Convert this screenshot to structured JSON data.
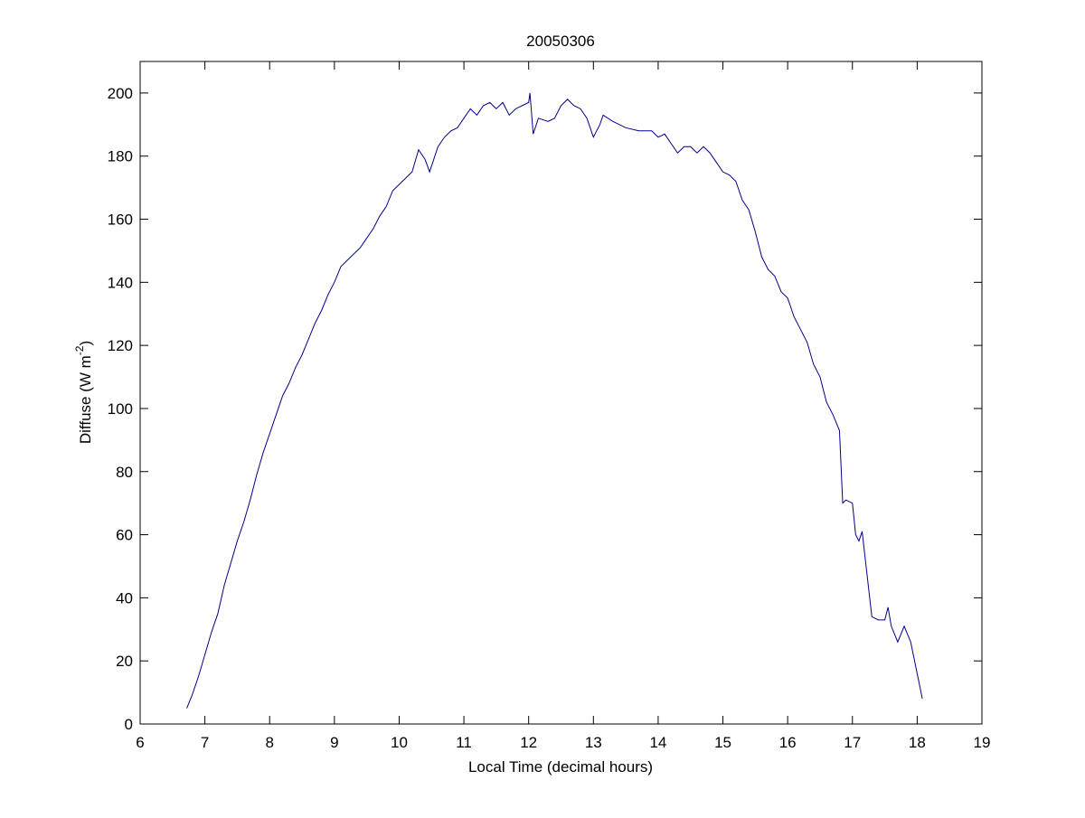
{
  "chart_data": {
    "type": "line",
    "title": "20050306",
    "xlabel": "Local Time (decimal hours)",
    "ylabel": [
      "Diffuse (W m",
      "-2",
      ")"
    ],
    "xlim": [
      6,
      19
    ],
    "ylim": [
      0,
      210
    ],
    "xticks": [
      6,
      7,
      8,
      9,
      10,
      11,
      12,
      13,
      14,
      15,
      16,
      17,
      18,
      19
    ],
    "yticks": [
      0,
      20,
      40,
      60,
      80,
      100,
      120,
      140,
      160,
      180,
      200
    ],
    "grid": false,
    "series": [
      {
        "color": "#00008b",
        "x": [
          6.72,
          6.8,
          6.9,
          7.0,
          7.1,
          7.2,
          7.3,
          7.4,
          7.5,
          7.6,
          7.7,
          7.8,
          7.9,
          8.0,
          8.1,
          8.2,
          8.3,
          8.4,
          8.5,
          8.6,
          8.7,
          8.8,
          8.9,
          9.0,
          9.1,
          9.2,
          9.3,
          9.4,
          9.5,
          9.6,
          9.7,
          9.8,
          9.9,
          10.0,
          10.1,
          10.2,
          10.3,
          10.4,
          10.47,
          10.6,
          10.7,
          10.8,
          10.9,
          11.0,
          11.1,
          11.2,
          11.3,
          11.4,
          11.5,
          11.6,
          11.7,
          11.8,
          11.9,
          12.0,
          12.02,
          12.07,
          12.15,
          12.3,
          12.4,
          12.5,
          12.6,
          12.7,
          12.8,
          12.9,
          13.0,
          13.1,
          13.15,
          13.3,
          13.5,
          13.7,
          13.9,
          14.0,
          14.1,
          14.2,
          14.3,
          14.4,
          14.5,
          14.6,
          14.7,
          14.8,
          14.9,
          15.0,
          15.1,
          15.2,
          15.3,
          15.4,
          15.5,
          15.6,
          15.7,
          15.8,
          15.9,
          16.0,
          16.1,
          16.2,
          16.3,
          16.4,
          16.5,
          16.6,
          16.7,
          16.8,
          16.85,
          16.9,
          17.0,
          17.05,
          17.1,
          17.15,
          17.2,
          17.3,
          17.4,
          17.5,
          17.55,
          17.6,
          17.7,
          17.8,
          17.9,
          18.0,
          18.08
        ],
        "values": [
          5,
          9,
          15,
          22,
          29,
          35,
          44,
          51,
          58,
          64,
          71,
          79,
          86,
          92,
          98,
          104,
          108,
          113,
          117,
          122,
          127,
          131,
          136,
          140,
          145,
          147,
          149,
          151,
          154,
          157,
          161,
          164,
          169,
          171,
          173,
          175,
          182,
          179,
          175,
          183,
          186,
          188,
          189,
          192,
          195,
          193,
          196,
          197,
          195,
          197,
          193,
          195,
          196,
          197,
          200,
          187,
          192,
          191,
          192,
          196,
          198,
          196,
          195,
          192,
          186,
          190,
          193,
          191,
          189,
          188,
          188,
          186,
          187,
          184,
          181,
          183,
          183,
          181,
          183,
          181,
          178,
          175,
          174,
          172,
          166,
          163,
          156,
          148,
          144,
          142,
          137,
          135,
          129,
          125,
          121,
          114,
          110,
          102,
          98,
          93,
          70,
          71,
          70,
          60,
          58,
          61,
          52,
          34,
          33,
          33,
          37,
          31,
          26,
          31,
          26,
          16,
          8
        ]
      }
    ]
  }
}
